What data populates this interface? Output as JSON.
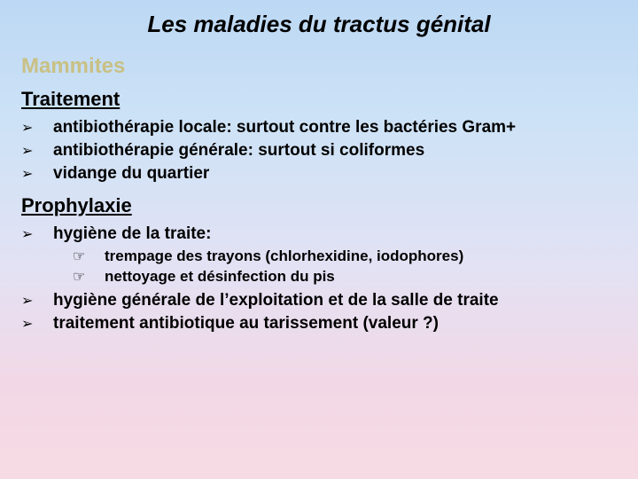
{
  "title": {
    "text": "Les maladies du tractus génital",
    "fontsize": 26,
    "color": "#000000"
  },
  "heading": {
    "text": "Mammites",
    "fontsize": 24,
    "color": "#c9c084"
  },
  "sections": [
    {
      "subheading": "Traitement",
      "subheading_fontsize": 22,
      "items": [
        {
          "bullet": "➢",
          "text": "antibiothérapie locale: surtout contre les bactéries Gram+",
          "fontsize": 19
        },
        {
          "bullet": "➢",
          "text": "antibiothérapie générale: surtout si coliformes",
          "fontsize": 19
        },
        {
          "bullet": "➢",
          "text": "vidange du quartier",
          "fontsize": 19
        }
      ]
    },
    {
      "subheading": "Prophylaxie",
      "subheading_fontsize": 22,
      "items": [
        {
          "bullet": "➢",
          "text": "hygiène de la traite:",
          "fontsize": 19,
          "subitems": [
            {
              "bullet": "☞",
              "text": "trempage des trayons (chlorhexidine, iodophores)",
              "fontsize": 17
            },
            {
              "bullet": "☞",
              "text": "nettoyage et désinfection du pis",
              "fontsize": 17
            }
          ]
        },
        {
          "bullet": "➢",
          "text": "hygiène générale de l’exploitation et de la salle de traite",
          "fontsize": 19
        },
        {
          "bullet": "➢",
          "text": "traitement antibiotique au tarissement (valeur ?)",
          "fontsize": 19
        }
      ]
    }
  ],
  "styling": {
    "background_gradient": [
      "#bcd8f4",
      "#cde2f6",
      "#e2e2f4",
      "#f2d8e6",
      "#f7dbe4"
    ],
    "bullet_color": "#000000",
    "text_color": "#000000",
    "font_family": "Arial",
    "slide_width": 720,
    "slide_height": 540
  }
}
